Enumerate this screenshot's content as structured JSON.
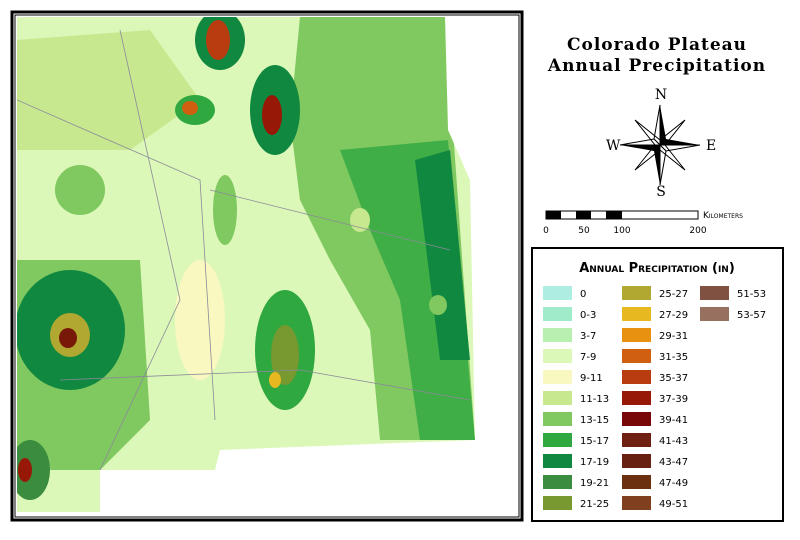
{
  "title": [
    "Colorado Plateau",
    "Annual Precipitation"
  ],
  "compass": {
    "north": "N",
    "south": "S",
    "east": "E",
    "west": "W"
  },
  "scale": {
    "unit": "Kilometers",
    "labels": [
      "0",
      "50",
      "100",
      "200"
    ]
  },
  "legend": {
    "title": "Annual Precipitation (in)",
    "items": [
      {
        "label": "0",
        "color": "#aeeee2"
      },
      {
        "label": "0-3",
        "color": "#a0ecca"
      },
      {
        "label": "3-7",
        "color": "#b8f0b0"
      },
      {
        "label": "7-9",
        "color": "#dcf8b8"
      },
      {
        "label": "9-11",
        "color": "#f8f8c0"
      },
      {
        "label": "11-13",
        "color": "#c8e890"
      },
      {
        "label": "13-15",
        "color": "#80c860"
      },
      {
        "label": "15-17",
        "color": "#30a840"
      },
      {
        "label": "17-19",
        "color": "#108840"
      },
      {
        "label": "19-21",
        "color": "#3c8c40"
      },
      {
        "label": "21-25",
        "color": "#789830"
      },
      {
        "label": "25-27",
        "color": "#b0a830"
      },
      {
        "label": "27-29",
        "color": "#e8b820"
      },
      {
        "label": "29-31",
        "color": "#e89010"
      },
      {
        "label": "31-35",
        "color": "#d06010"
      },
      {
        "label": "35-37",
        "color": "#b83c10"
      },
      {
        "label": "37-39",
        "color": "#981808"
      },
      {
        "label": "39-41",
        "color": "#780808"
      },
      {
        "label": "41-43",
        "color": "#702010"
      },
      {
        "label": "43-47",
        "color": "#682010"
      },
      {
        "label": "47-49",
        "color": "#6a3010"
      },
      {
        "label": "49-51",
        "color": "#804020"
      },
      {
        "label": "51-53",
        "color": "#805040"
      },
      {
        "label": "53-57",
        "color": "#987060"
      }
    ]
  }
}
